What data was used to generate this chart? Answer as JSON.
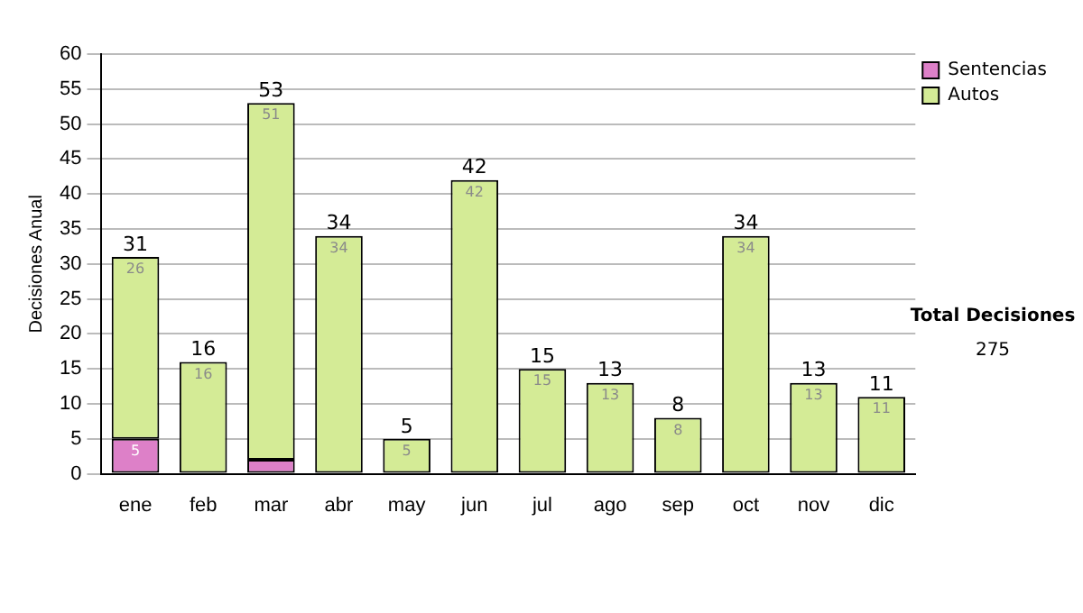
{
  "chart_data": {
    "type": "bar",
    "stacked": true,
    "ylabel": "Decisiones Anual",
    "categories": [
      "ene",
      "feb",
      "mar",
      "abr",
      "may",
      "jun",
      "jul",
      "ago",
      "sep",
      "oct",
      "nov",
      "dic"
    ],
    "series": [
      {
        "name": "Sentencias",
        "color": "#dd80c8",
        "values": [
          5,
          0,
          2,
          0,
          0,
          0,
          0,
          0,
          0,
          0,
          0,
          0
        ],
        "value_labels": [
          "5",
          null,
          null,
          null,
          null,
          null,
          null,
          null,
          null,
          null,
          null,
          null
        ]
      },
      {
        "name": "Autos",
        "color": "#d4eb96",
        "values": [
          26,
          16,
          51,
          34,
          5,
          42,
          15,
          13,
          8,
          34,
          13,
          11
        ],
        "value_labels": [
          "26",
          "16",
          "51",
          "34",
          "5",
          "42",
          "15",
          "13",
          "8",
          "34",
          "13",
          "11"
        ]
      }
    ],
    "totals": [
      "31",
      "16",
      "53",
      "34",
      "5",
      "42",
      "15",
      "13",
      "8",
      "34",
      "13",
      "11"
    ],
    "ylim": [
      0,
      60
    ],
    "yticks": [
      0,
      5,
      10,
      15,
      20,
      25,
      30,
      35,
      40,
      45,
      50,
      55,
      60
    ],
    "grid": "y",
    "legend": "right",
    "annotations": [
      "Total Decisiones",
      "275"
    ]
  }
}
